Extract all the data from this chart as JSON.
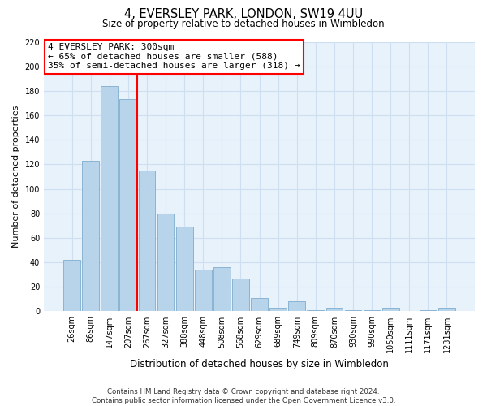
{
  "title": "4, EVERSLEY PARK, LONDON, SW19 4UU",
  "subtitle": "Size of property relative to detached houses in Wimbledon",
  "xlabel": "Distribution of detached houses by size in Wimbledon",
  "ylabel": "Number of detached properties",
  "categories": [
    "26sqm",
    "86sqm",
    "147sqm",
    "207sqm",
    "267sqm",
    "327sqm",
    "388sqm",
    "448sqm",
    "508sqm",
    "568sqm",
    "629sqm",
    "689sqm",
    "749sqm",
    "809sqm",
    "870sqm",
    "930sqm",
    "990sqm",
    "1050sqm",
    "1111sqm",
    "1171sqm",
    "1231sqm"
  ],
  "values": [
    42,
    123,
    184,
    173,
    115,
    80,
    69,
    34,
    36,
    27,
    11,
    3,
    8,
    1,
    3,
    1,
    1,
    3,
    0,
    1,
    3
  ],
  "bar_color": "#b8d4ea",
  "bar_edge_color": "#8ab4d4",
  "vline_x": 3.5,
  "vline_color": "red",
  "ylim": [
    0,
    220
  ],
  "yticks": [
    0,
    20,
    40,
    60,
    80,
    100,
    120,
    140,
    160,
    180,
    200,
    220
  ],
  "annotation_title": "4 EVERSLEY PARK: 300sqm",
  "annotation_line1": "← 65% of detached houses are smaller (588)",
  "annotation_line2": "35% of semi-detached houses are larger (318) →",
  "footer_line1": "Contains HM Land Registry data © Crown copyright and database right 2024.",
  "footer_line2": "Contains public sector information licensed under the Open Government Licence v3.0.",
  "grid_color": "#cddff0",
  "background_color": "#e8f2fb"
}
